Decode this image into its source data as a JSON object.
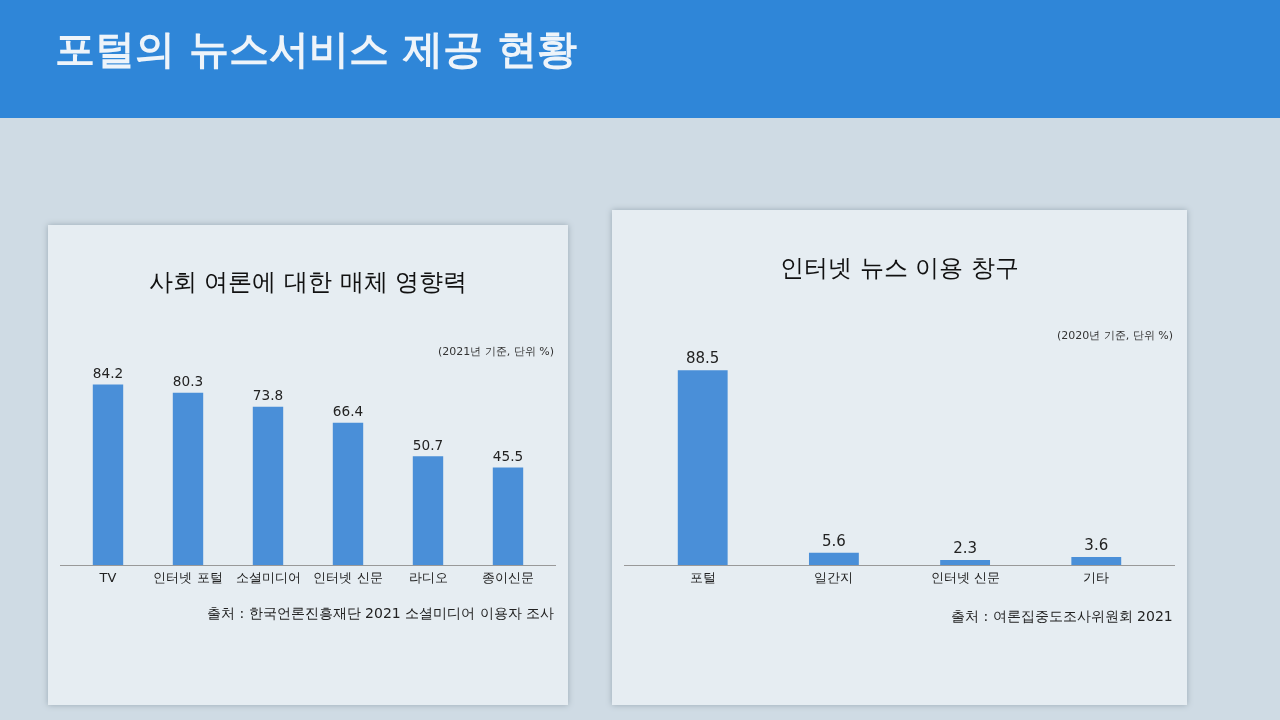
{
  "chart_data": [
    {
      "type": "bar",
      "title": "사회 여론에 대한 매체 영향력",
      "subtitle": "(2021년 기준, 단위 %)",
      "categories": [
        "TV",
        "인터넷 포털",
        "소셜미디어",
        "인터넷 신문",
        "라디오",
        "종이신문"
      ],
      "values": [
        84.2,
        80.3,
        73.8,
        66.4,
        50.7,
        45.5
      ],
      "color": "#4a8fd8",
      "data_labels": true,
      "grid": false,
      "legend": false,
      "annotations": [
        "포털의 뉴스서비스 제공 현황",
        "출처 : 한국언론진흥재단 2021 소셜미디어 이용자 조사"
      ]
    },
    {
      "type": "bar",
      "title": "인터넷 뉴스 이용 창구",
      "subtitle": "(2020년 기준, 단위 %)",
      "categories": [
        "포털",
        "일간지",
        "인터넷 신문",
        "기타"
      ],
      "values": [
        88.5,
        5.6,
        2.3,
        3.6
      ],
      "color": "#4a8fd8",
      "data_labels": true,
      "grid": false,
      "legend": false,
      "annotations": [
        "출처 : 여론집중도조사위원회 2021"
      ]
    }
  ]
}
